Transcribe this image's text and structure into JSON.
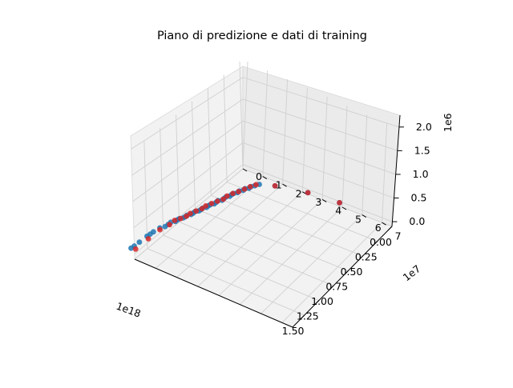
{
  "chart_data": {
    "type": "scatter",
    "projection": "3d",
    "title": "Piano di predizione e dati di training",
    "xlabel": "",
    "ylabel": "",
    "zlabel": "",
    "x_multiplier": "1e18",
    "y_multiplier": "1e7",
    "z_multiplier": "1e6",
    "x_ticks": [
      "0.00",
      "0.25",
      "0.50",
      "0.75",
      "1.00",
      "1.25",
      "1.50"
    ],
    "x_tick_values": [
      0.0,
      0.25,
      0.5,
      0.75,
      1.0,
      1.25,
      1.5
    ],
    "y_ticks": [
      "0",
      "1",
      "2",
      "3",
      "4",
      "5",
      "6",
      "7"
    ],
    "y_tick_values": [
      0,
      1,
      2,
      3,
      4,
      5,
      6,
      7
    ],
    "z_ticks": [
      "0.0",
      "0.5",
      "1.0",
      "1.5",
      "2.0"
    ],
    "z_tick_values": [
      0.0,
      0.5,
      1.0,
      1.5,
      2.0
    ],
    "xlim": [
      0.0,
      1.7
    ],
    "ylim": [
      0.0,
      7.5
    ],
    "zlim": [
      -0.1,
      2.25
    ],
    "grid": true,
    "legend": "none",
    "colors": {
      "series_1": "#1f77b4",
      "series_2": "#d62728"
    },
    "series": [
      {
        "marker_color": "#1f77b4",
        "x": [
          1.75,
          1.7,
          1.62,
          1.5,
          1.45,
          1.4,
          1.3,
          1.25,
          1.2,
          1.16,
          1.12,
          1.09,
          1.06,
          1.03,
          1.0,
          0.97,
          0.94,
          0.91,
          0.88,
          0.85,
          0.82,
          0.79,
          0.76,
          0.73,
          0.7,
          0.67,
          0.64,
          0.61,
          0.58,
          0.55,
          0.52,
          0.49,
          0.46,
          0.43,
          0.4,
          0.37,
          0.34,
          0.31,
          0.28,
          0.25,
          0.22,
          0.18,
          0.12,
          0.04,
          0.01
        ],
        "y": [
          0.0,
          0.0,
          0.0,
          0.0,
          0.0,
          0.0,
          0.0,
          0.1,
          0.1,
          0.1,
          0.2,
          0.2,
          0.2,
          0.3,
          0.3,
          0.3,
          0.4,
          0.4,
          0.4,
          0.5,
          0.5,
          0.5,
          0.6,
          0.6,
          0.6,
          0.7,
          0.7,
          0.7,
          0.8,
          0.8,
          0.8,
          0.9,
          0.9,
          0.9,
          1.0,
          1.0,
          1.1,
          1.1,
          1.2,
          1.2,
          1.3,
          1.4,
          2.0,
          3.4,
          4.9
        ],
        "z": [
          0.2,
          0.19,
          0.18,
          0.17,
          0.16,
          0.15,
          0.12,
          0.11,
          0.1,
          0.1,
          0.09,
          0.09,
          0.08,
          0.08,
          0.07,
          0.07,
          0.07,
          0.06,
          0.06,
          0.06,
          0.05,
          0.05,
          0.05,
          0.05,
          0.04,
          0.04,
          0.04,
          0.04,
          0.03,
          0.03,
          0.03,
          0.03,
          0.03,
          0.02,
          0.02,
          0.02,
          0.02,
          0.02,
          0.01,
          0.01,
          0.01,
          0.01,
          0.01,
          0.0,
          0.0
        ]
      },
      {
        "marker_color": "#d62728",
        "x": [
          1.68,
          1.48,
          1.3,
          1.18,
          1.1,
          1.04,
          0.98,
          0.92,
          0.86,
          0.8,
          0.74,
          0.68,
          0.62,
          0.56,
          0.5,
          0.44,
          0.38,
          0.32,
          0.26,
          0.2,
          0.12,
          0.04,
          0.01
        ],
        "y": [
          0.0,
          0.0,
          0.0,
          0.1,
          0.1,
          0.2,
          0.3,
          0.3,
          0.4,
          0.5,
          0.5,
          0.6,
          0.7,
          0.8,
          0.8,
          0.9,
          1.0,
          1.1,
          1.2,
          1.3,
          2.0,
          3.4,
          4.9
        ],
        "z": [
          0.1,
          0.09,
          0.08,
          0.07,
          0.07,
          0.06,
          0.06,
          0.05,
          0.05,
          0.05,
          0.04,
          0.04,
          0.04,
          0.03,
          0.03,
          0.03,
          0.02,
          0.02,
          0.02,
          0.01,
          0.01,
          0.0,
          0.0
        ]
      }
    ]
  }
}
